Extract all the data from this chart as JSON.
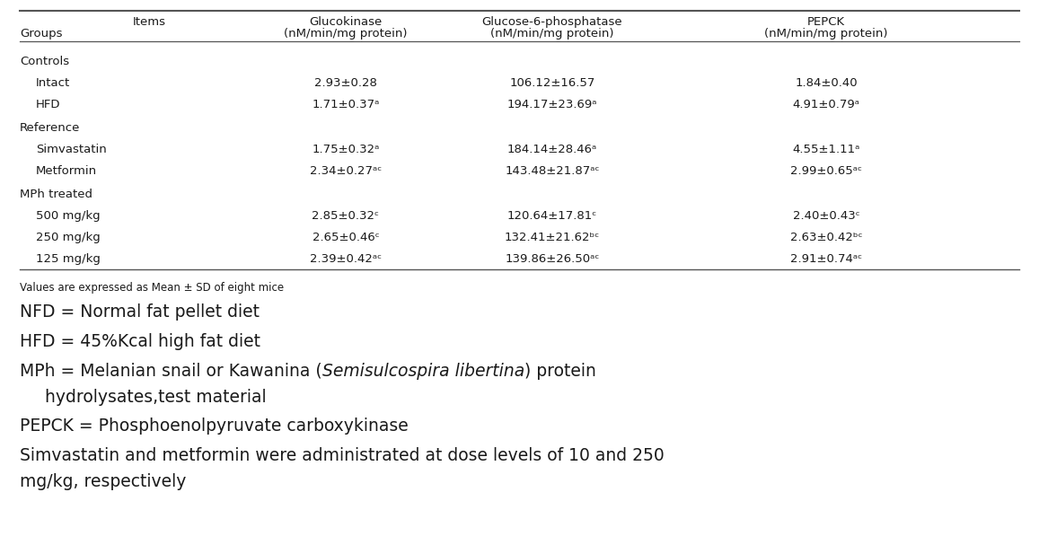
{
  "header_row1": [
    "Items",
    "Glucokinase",
    "Glucose-6-phosphatase",
    "PEPCK"
  ],
  "header_row2": [
    "Groups",
    "(nM/min/mg protein)",
    "(nM/min/mg protein)",
    "(nM/min/mg protein)"
  ],
  "sections": [
    {
      "section_label": "Controls",
      "rows": [
        {
          "label": "Intact",
          "col1": "2.93±0.28",
          "col2": "106.12±16.57",
          "col3": "1.84±0.40"
        },
        {
          "label": "HFD",
          "col1": "1.71±0.37ᵃ",
          "col2": "194.17±23.69ᵃ",
          "col3": "4.91±0.79ᵃ"
        }
      ]
    },
    {
      "section_label": "Reference",
      "rows": [
        {
          "label": "Simvastatin",
          "col1": "1.75±0.32ᵃ",
          "col2": "184.14±28.46ᵃ",
          "col3": "4.55±1.11ᵃ"
        },
        {
          "label": "Metformin",
          "col1": "2.34±0.27ᵃᶜ",
          "col2": "143.48±21.87ᵃᶜ",
          "col3": "2.99±0.65ᵃᶜ"
        }
      ]
    },
    {
      "section_label": "MPh treated",
      "rows": [
        {
          "label": "500 mg/kg",
          "col1": "2.85±0.32ᶜ",
          "col2": "120.64±17.81ᶜ",
          "col3": "2.40±0.43ᶜ"
        },
        {
          "label": "250 mg/kg",
          "col1": "2.65±0.46ᶜ",
          "col2": "132.41±21.62ᵇᶜ",
          "col3": "2.63±0.42ᵇᶜ"
        },
        {
          "label": "125 mg/kg",
          "col1": "2.39±0.42ᵃᶜ",
          "col2": "139.86±26.50ᵃᶜ",
          "col3": "2.91±0.74ᵃᶜ"
        }
      ]
    }
  ],
  "footnote_small": "Values are expressed as Mean ± SD of eight mice",
  "footnotes": [
    {
      "text": "NFD = Normal fat pellet diet",
      "style": "normal"
    },
    {
      "text": "HFD = 45%Kcal high fat diet",
      "style": "normal"
    },
    {
      "pre": "MPh = Melanian snail or Kawanina (",
      "italic": "Semisulcospira libertina",
      "post": ") protein",
      "line2": "   hydrolysates,test material",
      "style": "mixed"
    },
    {
      "text": "PEPCK = Phosphoenolpyruvate carboxykinase",
      "style": "normal"
    },
    {
      "text": "Simvastatin and metformin were administrated at dose levels of 10 and 250",
      "line2": "mg/kg, respectively",
      "style": "normal"
    }
  ],
  "bg_color": "#ffffff",
  "text_color": "#1a1a1a",
  "table_header_fontsize": 9.5,
  "table_body_fontsize": 9.5,
  "footnote_small_fontsize": 8.5,
  "footnote_fontsize": 13.5
}
